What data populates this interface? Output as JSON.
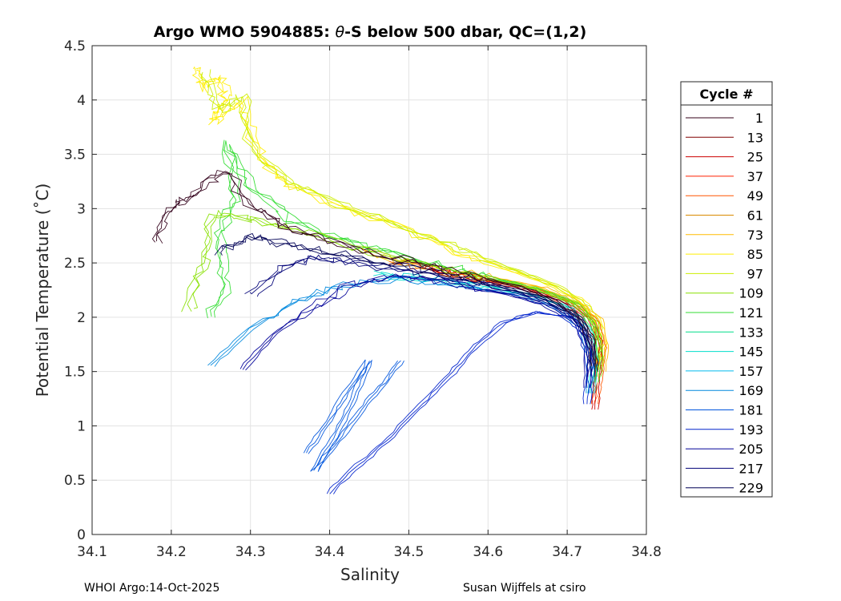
{
  "chart_data": {
    "type": "line",
    "title": "Argo WMO 5904885: θ-S below 500 dbar,  QC=(1,2)",
    "title_parts": {
      "prefix": "Argo WMO 5904885: ",
      "theta": "θ",
      "suffix": "-S below 500 dbar,  QC=(1,2)"
    },
    "xlabel": "Salinity",
    "ylabel": "Potential Temperature (˚C)",
    "xlim": [
      34.1,
      34.8
    ],
    "ylim": [
      0,
      4.5
    ],
    "xticks": [
      "34.1",
      "34.2",
      "34.3",
      "34.4",
      "34.5",
      "34.6",
      "34.7",
      "34.8"
    ],
    "yticks": [
      "0",
      "0.5",
      "1",
      "1.5",
      "2",
      "2.5",
      "3",
      "3.5",
      "4",
      "4.5"
    ],
    "grid": true,
    "legend": {
      "title": "Cycle #",
      "position": "outside-right",
      "entries": [
        {
          "label": "1",
          "color": "#33001a"
        },
        {
          "label": "13",
          "color": "#800000"
        },
        {
          "label": "25",
          "color": "#cc0000"
        },
        {
          "label": "37",
          "color": "#ff2200"
        },
        {
          "label": "49",
          "color": "#ff5500"
        },
        {
          "label": "61",
          "color": "#d98a00"
        },
        {
          "label": "73",
          "color": "#ffbb00"
        },
        {
          "label": "85",
          "color": "#ffee00"
        },
        {
          "label": "97",
          "color": "#ccee00"
        },
        {
          "label": "109",
          "color": "#88e000"
        },
        {
          "label": "121",
          "color": "#33dd33"
        },
        {
          "label": "133",
          "color": "#00dd88"
        },
        {
          "label": "145",
          "color": "#00ddcc"
        },
        {
          "label": "157",
          "color": "#00bbee"
        },
        {
          "label": "169",
          "color": "#0088dd"
        },
        {
          "label": "181",
          "color": "#0055dd"
        },
        {
          "label": "193",
          "color": "#0022cc"
        },
        {
          "label": "205",
          "color": "#000099"
        },
        {
          "label": "217",
          "color": "#000077"
        },
        {
          "label": "229",
          "color": "#000055"
        }
      ]
    },
    "series": [
      {
        "name": "cycle-85",
        "color": "#ffee00",
        "points": [
          [
            34.23,
            4.3
          ],
          [
            34.24,
            4.1
          ],
          [
            34.26,
            4.2
          ],
          [
            34.27,
            4.0
          ],
          [
            34.25,
            3.8
          ],
          [
            34.29,
            4.0
          ],
          [
            34.3,
            3.7
          ],
          [
            34.32,
            3.4
          ],
          [
            34.35,
            3.2
          ],
          [
            34.42,
            3.0
          ],
          [
            34.5,
            2.8
          ],
          [
            34.56,
            2.6
          ],
          [
            34.62,
            2.45
          ],
          [
            34.68,
            2.3
          ],
          [
            34.72,
            2.15
          ],
          [
            34.74,
            1.95
          ],
          [
            34.745,
            1.75
          ],
          [
            34.74,
            1.55
          ]
        ]
      },
      {
        "name": "cycle-97",
        "color": "#ccee00",
        "points": [
          [
            34.24,
            4.25
          ],
          [
            34.26,
            3.9
          ],
          [
            34.29,
            4.05
          ],
          [
            34.3,
            3.55
          ],
          [
            34.36,
            3.2
          ],
          [
            34.43,
            3.0
          ],
          [
            34.52,
            2.75
          ],
          [
            34.58,
            2.58
          ],
          [
            34.64,
            2.42
          ],
          [
            34.69,
            2.28
          ],
          [
            34.725,
            2.1
          ],
          [
            34.74,
            1.9
          ],
          [
            34.74,
            1.6
          ]
        ]
      },
      {
        "name": "cycle-73",
        "color": "#ffbb00",
        "points": [
          [
            34.44,
            2.62
          ],
          [
            34.5,
            2.5
          ],
          [
            34.56,
            2.42
          ],
          [
            34.62,
            2.35
          ],
          [
            34.67,
            2.27
          ],
          [
            34.71,
            2.15
          ],
          [
            34.74,
            1.98
          ],
          [
            34.748,
            1.75
          ],
          [
            34.745,
            1.5
          ]
        ]
      },
      {
        "name": "cycle-49",
        "color": "#ff5500",
        "points": [
          [
            34.48,
            2.52
          ],
          [
            34.54,
            2.42
          ],
          [
            34.6,
            2.34
          ],
          [
            34.66,
            2.26
          ],
          [
            34.705,
            2.14
          ],
          [
            34.735,
            1.97
          ],
          [
            34.745,
            1.72
          ],
          [
            34.74,
            1.42
          ],
          [
            34.735,
            1.2
          ]
        ]
      },
      {
        "name": "cycle-13",
        "color": "#cc0000",
        "points": [
          [
            34.52,
            2.45
          ],
          [
            34.58,
            2.36
          ],
          [
            34.64,
            2.27
          ],
          [
            34.69,
            2.16
          ],
          [
            34.725,
            2.0
          ],
          [
            34.74,
            1.78
          ],
          [
            34.738,
            1.45
          ],
          [
            34.735,
            1.15
          ]
        ]
      },
      {
        "name": "cycle-121",
        "color": "#33dd33",
        "points": [
          [
            34.25,
            2.0
          ],
          [
            34.27,
            2.3
          ],
          [
            34.26,
            2.7
          ],
          [
            34.28,
            3.1
          ],
          [
            34.27,
            3.6
          ],
          [
            34.3,
            3.2
          ],
          [
            34.35,
            2.9
          ],
          [
            34.42,
            2.7
          ],
          [
            34.5,
            2.55
          ],
          [
            34.57,
            2.42
          ],
          [
            34.63,
            2.32
          ],
          [
            34.68,
            2.22
          ],
          [
            34.715,
            2.1
          ],
          [
            34.735,
            1.9
          ],
          [
            34.74,
            1.65
          ],
          [
            34.735,
            1.4
          ]
        ]
      },
      {
        "name": "cycle-109",
        "color": "#88e000",
        "points": [
          [
            34.22,
            2.05
          ],
          [
            34.24,
            2.5
          ],
          [
            34.25,
            2.95
          ],
          [
            34.3,
            2.9
          ],
          [
            34.36,
            2.8
          ],
          [
            34.44,
            2.62
          ],
          [
            34.52,
            2.48
          ],
          [
            34.6,
            2.36
          ],
          [
            34.66,
            2.26
          ],
          [
            34.71,
            2.13
          ],
          [
            34.735,
            1.95
          ],
          [
            34.742,
            1.7
          ],
          [
            34.738,
            1.45
          ]
        ]
      },
      {
        "name": "cycle-145",
        "color": "#00ddcc",
        "points": [
          [
            34.46,
            2.4
          ],
          [
            34.53,
            2.35
          ],
          [
            34.6,
            2.28
          ],
          [
            34.66,
            2.2
          ],
          [
            34.705,
            2.08
          ],
          [
            34.728,
            1.88
          ],
          [
            34.735,
            1.6
          ],
          [
            34.73,
            1.3
          ]
        ]
      },
      {
        "name": "cycle-169",
        "color": "#0088dd",
        "points": [
          [
            34.25,
            1.55
          ],
          [
            34.3,
            1.9
          ],
          [
            34.36,
            2.15
          ],
          [
            34.42,
            2.3
          ],
          [
            34.5,
            2.35
          ],
          [
            34.58,
            2.28
          ],
          [
            34.64,
            2.2
          ],
          [
            34.69,
            2.08
          ],
          [
            34.72,
            1.9
          ],
          [
            34.73,
            1.6
          ],
          [
            34.728,
            1.3
          ]
        ]
      },
      {
        "name": "cycle-181",
        "color": "#0055dd",
        "points": [
          [
            34.37,
            0.75
          ],
          [
            34.4,
            1.05
          ],
          [
            34.42,
            1.3
          ],
          [
            34.45,
            1.6
          ],
          [
            34.43,
            1.25
          ],
          [
            34.41,
            0.95
          ],
          [
            34.38,
            0.58
          ],
          [
            34.41,
            0.85
          ],
          [
            34.44,
            1.15
          ],
          [
            34.47,
            1.4
          ],
          [
            34.49,
            1.6
          ]
        ]
      },
      {
        "name": "cycle-193",
        "color": "#0022cc",
        "points": [
          [
            34.4,
            0.38
          ],
          [
            34.43,
            0.6
          ],
          [
            34.47,
            0.85
          ],
          [
            34.51,
            1.15
          ],
          [
            34.55,
            1.45
          ],
          [
            34.58,
            1.7
          ],
          [
            34.62,
            1.95
          ],
          [
            34.66,
            2.05
          ],
          [
            34.7,
            2.0
          ],
          [
            34.72,
            1.85
          ],
          [
            34.728,
            1.55
          ],
          [
            34.725,
            1.2
          ]
        ]
      },
      {
        "name": "cycle-205",
        "color": "#000099",
        "points": [
          [
            34.29,
            1.52
          ],
          [
            34.33,
            1.85
          ],
          [
            34.38,
            2.1
          ],
          [
            34.43,
            2.3
          ],
          [
            34.48,
            2.38
          ],
          [
            34.55,
            2.32
          ],
          [
            34.62,
            2.22
          ],
          [
            34.67,
            2.12
          ],
          [
            34.71,
            1.97
          ],
          [
            34.727,
            1.72
          ],
          [
            34.725,
            1.35
          ]
        ]
      },
      {
        "name": "cycle-217",
        "color": "#000077",
        "points": [
          [
            34.3,
            2.2
          ],
          [
            34.34,
            2.45
          ],
          [
            34.38,
            2.55
          ],
          [
            34.43,
            2.5
          ],
          [
            34.5,
            2.42
          ],
          [
            34.57,
            2.33
          ],
          [
            34.63,
            2.24
          ],
          [
            34.68,
            2.13
          ],
          [
            34.715,
            1.97
          ],
          [
            34.73,
            1.75
          ],
          [
            34.73,
            1.45
          ]
        ]
      },
      {
        "name": "cycle-229",
        "color": "#000055",
        "points": [
          [
            34.26,
            2.6
          ],
          [
            34.3,
            2.75
          ],
          [
            34.34,
            2.68
          ],
          [
            34.4,
            2.6
          ],
          [
            34.47,
            2.5
          ],
          [
            34.54,
            2.4
          ],
          [
            34.61,
            2.3
          ],
          [
            34.67,
            2.18
          ],
          [
            34.71,
            2.02
          ],
          [
            34.73,
            1.78
          ],
          [
            34.735,
            1.5
          ]
        ]
      },
      {
        "name": "cycle-1",
        "color": "#33001a",
        "points": [
          [
            34.18,
            2.7
          ],
          [
            34.2,
            3.0
          ],
          [
            34.23,
            3.15
          ],
          [
            34.27,
            3.35
          ],
          [
            34.3,
            3.05
          ],
          [
            34.34,
            2.85
          ],
          [
            34.39,
            2.72
          ],
          [
            34.45,
            2.6
          ],
          [
            34.52,
            2.48
          ],
          [
            34.58,
            2.38
          ],
          [
            34.64,
            2.28
          ],
          [
            34.685,
            2.16
          ],
          [
            34.715,
            2.0
          ],
          [
            34.73,
            1.8
          ],
          [
            34.735,
            1.55
          ]
        ]
      }
    ]
  },
  "footer": {
    "left": "WHOI Argo:14-Oct-2025",
    "right": "Susan Wijffels at csiro"
  }
}
